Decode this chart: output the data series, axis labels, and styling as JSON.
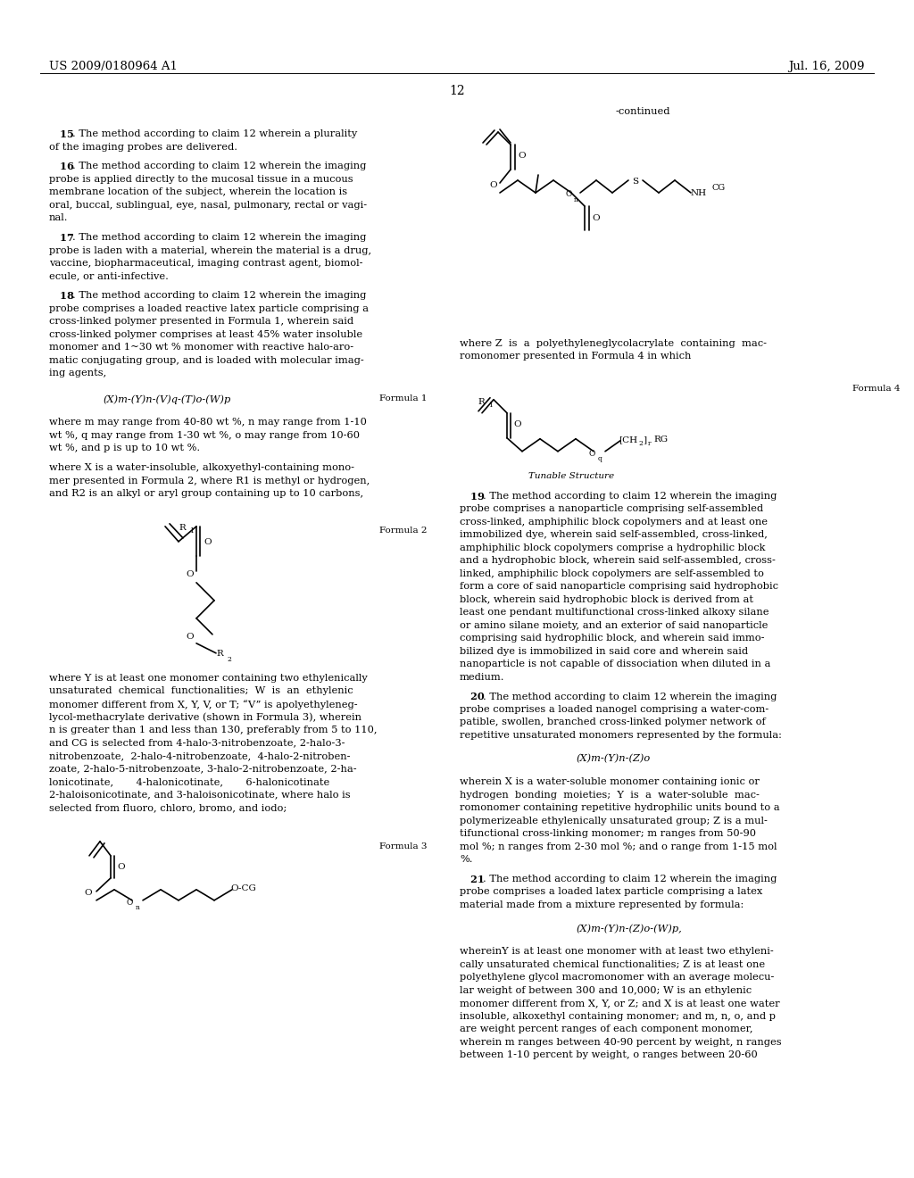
{
  "background_color": "#ffffff",
  "page_width": 10.24,
  "page_height": 13.2,
  "header_left": "US 2009/0180964 A1",
  "header_right": "Jul. 16, 2009",
  "page_number": "12",
  "continued_label": "-continued",
  "formula1_label": "Formula 1",
  "formula2_label": "Formula 2",
  "formula3_label": "Formula 3",
  "formula4_label": "Formula 4",
  "tunable_label": "Tunable Structure",
  "body_fontsize": 8.5,
  "small_fontsize": 7.5
}
